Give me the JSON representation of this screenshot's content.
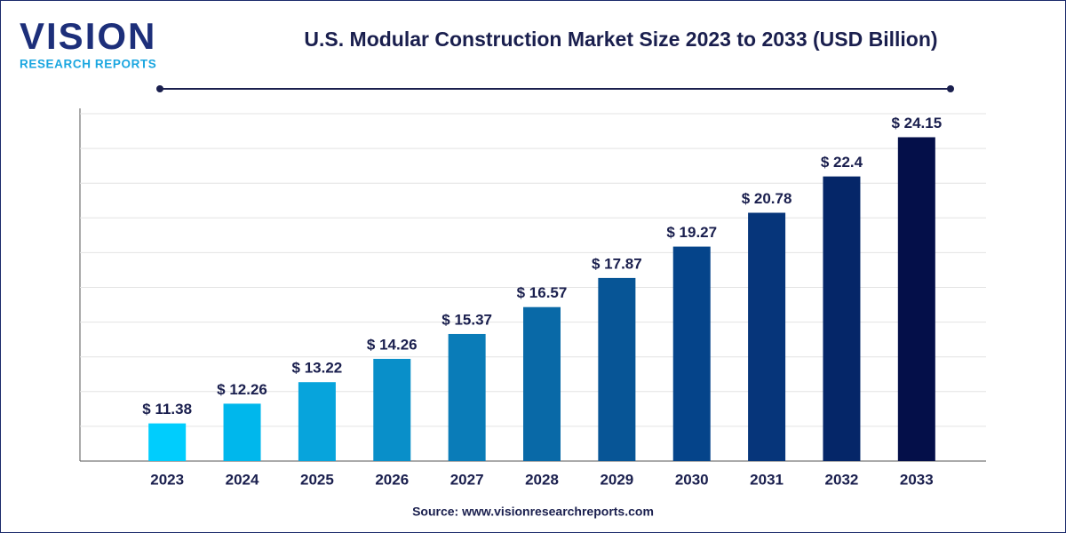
{
  "logo": {
    "name": "VISION",
    "tagline": "RESEARCH REPORTS"
  },
  "chart_data": {
    "type": "bar",
    "title": "U.S. Modular Construction Market Size 2023 to 2033 (USD Billion)",
    "categories": [
      "2023",
      "2024",
      "2025",
      "2026",
      "2027",
      "2028",
      "2029",
      "2030",
      "2031",
      "2032",
      "2033"
    ],
    "values": [
      11.38,
      12.26,
      13.22,
      14.26,
      15.37,
      16.57,
      17.87,
      19.27,
      20.78,
      22.4,
      24.15
    ],
    "value_labels": [
      "$ 11.38",
      "$ 12.26",
      "$ 13.22",
      "$ 14.26",
      "$ 15.37",
      "$ 16.57",
      "$ 17.87",
      "$ 19.27",
      "$ 20.78",
      "$ 22.4",
      "$ 24.15"
    ],
    "colors": [
      "#00cdfd",
      "#00b7ec",
      "#07a4dc",
      "#098fc9",
      "#0a7cb8",
      "#0969a7",
      "#075596",
      "#05448a",
      "#06357a",
      "#052668",
      "#040f49"
    ],
    "ylim": [
      9.7,
      25.2
    ],
    "yticks": [
      9.7,
      11.25,
      12.8,
      14.35,
      15.9,
      17.45,
      19,
      20.55,
      22.1,
      23.65,
      25.2
    ],
    "grid": true
  },
  "source": "Source: www.visionresearchreports.com"
}
